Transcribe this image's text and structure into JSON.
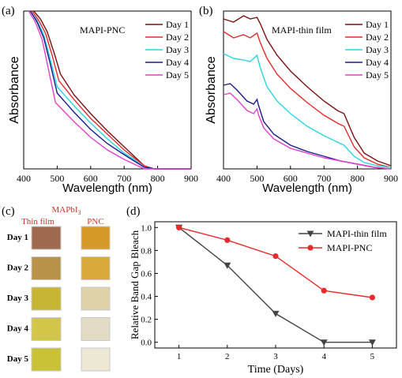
{
  "chart_data": [
    {
      "panel": "(a)",
      "type": "line",
      "title": "MAPI-PNC",
      "xlabel": "Wavelength (nm)",
      "ylabel": "Absorbance",
      "xlim": [
        400,
        900
      ],
      "xticks": [
        400,
        500,
        600,
        700,
        800,
        900
      ],
      "ylim": [
        0,
        1
      ],
      "legend_position": "top-right",
      "series": [
        {
          "name": "Day 1",
          "color": "#7b1010",
          "x": [
            430,
            450,
            470,
            490,
            510,
            550,
            600,
            650,
            700,
            730,
            760,
            790,
            900
          ],
          "y": [
            1.0,
            0.95,
            0.87,
            0.74,
            0.6,
            0.47,
            0.35,
            0.24,
            0.14,
            0.08,
            0.02,
            0.0,
            0.0
          ]
        },
        {
          "name": "Day 2",
          "color": "#e52b2b",
          "x": [
            425,
            445,
            465,
            485,
            505,
            550,
            600,
            650,
            700,
            730,
            760,
            790,
            900
          ],
          "y": [
            1.0,
            0.94,
            0.86,
            0.72,
            0.56,
            0.44,
            0.32,
            0.22,
            0.12,
            0.07,
            0.02,
            0.0,
            0.0
          ]
        },
        {
          "name": "Day 3",
          "color": "#2ad4e0",
          "x": [
            420,
            440,
            460,
            480,
            500,
            550,
            600,
            650,
            700,
            730,
            760,
            790,
            900
          ],
          "y": [
            1.0,
            0.94,
            0.85,
            0.69,
            0.52,
            0.4,
            0.29,
            0.19,
            0.1,
            0.06,
            0.01,
            0.0,
            0.0
          ]
        },
        {
          "name": "Day 4",
          "color": "#1a1a8c",
          "x": [
            420,
            440,
            460,
            480,
            500,
            550,
            600,
            650,
            700,
            730,
            760,
            790,
            900
          ],
          "y": [
            1.0,
            0.93,
            0.83,
            0.66,
            0.48,
            0.36,
            0.25,
            0.16,
            0.09,
            0.05,
            0.01,
            0.0,
            0.0
          ]
        },
        {
          "name": "Day 5",
          "color": "#e040c8",
          "x": [
            415,
            435,
            455,
            475,
            495,
            550,
            600,
            650,
            700,
            730,
            760,
            790,
            900
          ],
          "y": [
            1.0,
            0.93,
            0.82,
            0.62,
            0.42,
            0.3,
            0.2,
            0.12,
            0.06,
            0.03,
            0.0,
            0.0,
            0.0
          ]
        }
      ]
    },
    {
      "panel": "(b)",
      "type": "line",
      "title": "MAPI-thin film",
      "xlabel": "Wavelength (nm)",
      "ylabel": "Absorbance",
      "xlim": [
        400,
        900
      ],
      "xticks": [
        400,
        500,
        600,
        700,
        800,
        900
      ],
      "ylim": [
        0,
        1
      ],
      "legend_position": "top-right",
      "series": [
        {
          "name": "Day 1",
          "color": "#7b1010",
          "x": [
            400,
            430,
            460,
            480,
            500,
            510,
            530,
            560,
            600,
            650,
            700,
            740,
            760,
            790,
            820,
            860,
            900
          ],
          "y": [
            0.95,
            0.93,
            0.97,
            0.95,
            0.96,
            0.92,
            0.82,
            0.72,
            0.62,
            0.52,
            0.43,
            0.37,
            0.35,
            0.2,
            0.1,
            0.05,
            0.02
          ]
        },
        {
          "name": "Day 2",
          "color": "#e52b2b",
          "x": [
            400,
            430,
            460,
            480,
            500,
            510,
            530,
            560,
            600,
            650,
            700,
            740,
            760,
            790,
            820,
            860,
            900
          ],
          "y": [
            0.87,
            0.83,
            0.85,
            0.83,
            0.86,
            0.8,
            0.7,
            0.6,
            0.51,
            0.42,
            0.34,
            0.29,
            0.27,
            0.14,
            0.07,
            0.03,
            0.01
          ]
        },
        {
          "name": "Day 3",
          "color": "#2ad4e0",
          "x": [
            400,
            430,
            460,
            480,
            500,
            510,
            530,
            560,
            600,
            650,
            700,
            740,
            760,
            790,
            820,
            860,
            900
          ],
          "y": [
            0.73,
            0.7,
            0.69,
            0.68,
            0.72,
            0.64,
            0.52,
            0.43,
            0.35,
            0.27,
            0.21,
            0.17,
            0.15,
            0.08,
            0.04,
            0.02,
            0.01
          ]
        },
        {
          "name": "Day 4",
          "color": "#1a1a8c",
          "x": [
            400,
            420,
            440,
            470,
            490,
            500,
            505,
            520,
            550,
            600,
            650,
            700,
            750,
            800,
            850,
            900
          ],
          "y": [
            0.53,
            0.54,
            0.5,
            0.43,
            0.41,
            0.44,
            0.4,
            0.3,
            0.22,
            0.15,
            0.11,
            0.08,
            0.05,
            0.03,
            0.01,
            0.0
          ]
        },
        {
          "name": "Day 5",
          "color": "#e040c8",
          "x": [
            400,
            420,
            440,
            470,
            490,
            500,
            505,
            520,
            550,
            600,
            650,
            700,
            750,
            800,
            850,
            900
          ],
          "y": [
            0.47,
            0.48,
            0.44,
            0.37,
            0.35,
            0.38,
            0.34,
            0.26,
            0.19,
            0.13,
            0.1,
            0.07,
            0.05,
            0.03,
            0.01,
            0.0
          ]
        }
      ]
    },
    {
      "panel": "(d)",
      "type": "line",
      "title": "",
      "xlabel": "Time (Days)",
      "ylabel": "Relative Band Gap Bleach",
      "x": [
        1,
        2,
        3,
        4,
        5
      ],
      "xlim": [
        0.5,
        5.5
      ],
      "ylim": [
        -0.05,
        1.05
      ],
      "yticks": [
        "0.0",
        "0.2",
        "0.4",
        "0.6",
        "0.8",
        "1.0"
      ],
      "legend_position": "top-right",
      "series": [
        {
          "name": "MAPI-thin film",
          "color": "#444444",
          "marker": "triangle-down",
          "values": [
            1.0,
            0.67,
            0.25,
            0.0,
            0.0
          ]
        },
        {
          "name": "MAPI-PNC",
          "color": "#e52b2b",
          "marker": "circle",
          "values": [
            1.0,
            0.89,
            0.75,
            0.45,
            0.39
          ]
        }
      ]
    }
  ],
  "panels": {
    "a_label": "(a)",
    "b_label": "(b)",
    "c_label": "(c)",
    "d_label": "(d)"
  },
  "photo_panel": {
    "header_main": "MAPbI",
    "header_sub": "3",
    "header_color": "#c0392b",
    "col_thin_film": "Thin film",
    "col_pnc": "PNC",
    "rows": [
      {
        "label": "Day 1",
        "thin_film_color": "#a06a50",
        "pnc_color": "#d49a28"
      },
      {
        "label": "Day 2",
        "thin_film_color": "#b8924a",
        "pnc_color": "#d9a93c"
      },
      {
        "label": "Day 3",
        "thin_film_color": "#c7b634",
        "pnc_color": "#ded3a8"
      },
      {
        "label": "Day 4",
        "thin_film_color": "#d2c64a",
        "pnc_color": "#e2dcc4"
      },
      {
        "label": "Day 5",
        "thin_film_color": "#c9c236",
        "pnc_color": "#ece8d4"
      }
    ]
  }
}
